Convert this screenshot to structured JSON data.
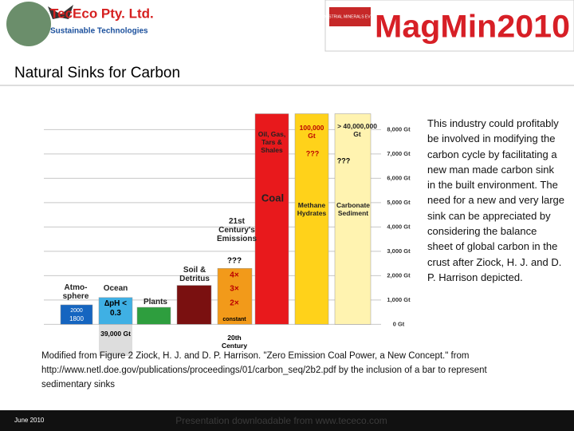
{
  "header": {
    "company": "TecEco Pty. Ltd.",
    "tagline": "Sustainable Technologies",
    "event_small": "INDUSTRIAL MINERALS EVENTS",
    "event": "MagMin2010"
  },
  "title": "Natural Sinks for Carbon",
  "chart_data": {
    "type": "bar",
    "categories": [
      "Atmo- sphere",
      "Ocean",
      "Plants",
      "Soil & Detritus",
      "21st Century's Emissions",
      "Oil, Gas, Tars & Shales",
      "Methane Hydrates",
      "Carbonate Sediment"
    ],
    "values": [
      800,
      1100,
      700,
      1600,
      2300,
      8650,
      8650,
      8650
    ],
    "colors": [
      "#1565c0",
      "#3fb0e4",
      "#2e9e3e",
      "#7a1010",
      "#f29a1a",
      "#e8191c",
      "#ffd21a",
      "#fff3b0"
    ],
    "ylim": [
      -1300,
      8700
    ],
    "yticks": [
      {
        "value": 0,
        "label": "0 Gt"
      },
      {
        "value": 1000,
        "label": "1,000 Gt"
      },
      {
        "value": 2000,
        "label": "2,000 Gt"
      },
      {
        "value": 3000,
        "label": "3,000 Gt"
      },
      {
        "value": 4000,
        "label": "4,000 Gt"
      },
      {
        "value": 5000,
        "label": "5,000 Gt"
      },
      {
        "value": 6000,
        "label": "6,000 Gt"
      },
      {
        "value": 7000,
        "label": "7,000 Gt"
      },
      {
        "value": 8000,
        "label": "8,000 Gt"
      }
    ],
    "grid": true,
    "annotations": [
      "2000",
      "1800",
      "∆pH < 0.3",
      "39,000 Gt",
      "???",
      "4×",
      "3×",
      "2×",
      "constant",
      "20th Century",
      "Coal",
      "100,000 Gt",
      "???",
      "> 40,000,000 Gt",
      "???"
    ]
  },
  "body": "This industry could profitably be involved in modifying the carbon cycle by facilitating a new man made carbon sink in the built environment. The need for a new and very large sink can be appreciated by considering the balance sheet of global carbon in the crust after Ziock, H. J. and D. P. Harrison depicted.",
  "caption": "Modified from Figure 2 Ziock, H. J. and D. P. Harrison. \"Zero Emission Coal Power, a New Concept.\" from http://www.netl.doe.gov/publications/proceedings/01/carbon_seq/2b2.pdf by the inclusion of a bar to represent sedimentary sinks",
  "footer": {
    "date": "June 2010",
    "link": "Presentation downloadable from www.tececo.com"
  }
}
